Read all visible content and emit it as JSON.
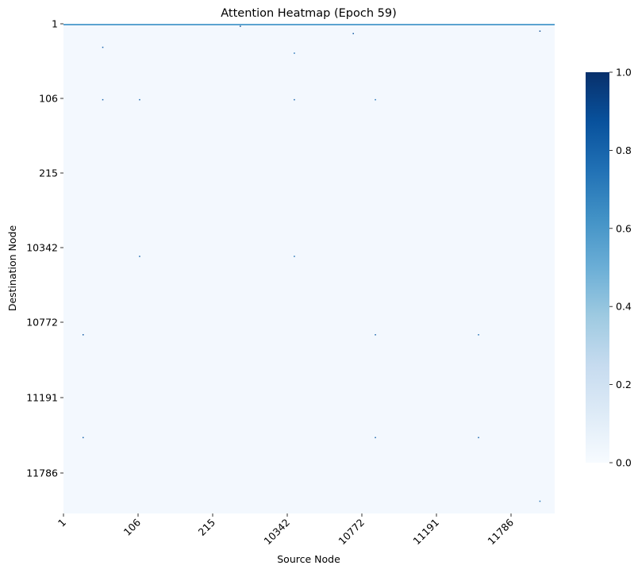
{
  "chart_data": {
    "type": "heatmap",
    "title": "Attention Heatmap (Epoch 59)",
    "xlabel": "Source Node",
    "ylabel": "Destination Node",
    "x_ticks": [
      "1",
      "106",
      "215",
      "10342",
      "10772",
      "11191",
      "11786"
    ],
    "y_ticks": [
      "1",
      "106",
      "215",
      "10342",
      "10772",
      "11191",
      "11786"
    ],
    "colorbar": {
      "range": [
        0.0,
        1.0
      ],
      "ticks": [
        "0.0",
        "0.2",
        "0.4",
        "0.6",
        "0.8",
        "1.0"
      ],
      "colormap": "Blues"
    },
    "background_value": 0.02,
    "first_row_value": 0.55,
    "hot_cells": [
      {
        "src": 0.36,
        "dst": 0.005,
        "value": 0.9
      },
      {
        "src": 0.59,
        "dst": 0.02,
        "value": 0.85
      },
      {
        "src": 0.97,
        "dst": 0.015,
        "value": 0.9
      },
      {
        "src": 0.08,
        "dst": 0.048,
        "value": 0.8
      },
      {
        "src": 0.47,
        "dst": 0.06,
        "value": 0.75
      },
      {
        "src": 0.08,
        "dst": 0.155,
        "value": 0.8
      },
      {
        "src": 0.155,
        "dst": 0.155,
        "value": 0.8
      },
      {
        "src": 0.47,
        "dst": 0.155,
        "value": 0.8
      },
      {
        "src": 0.635,
        "dst": 0.155,
        "value": 0.75
      },
      {
        "src": 0.155,
        "dst": 0.475,
        "value": 0.8
      },
      {
        "src": 0.47,
        "dst": 0.475,
        "value": 0.75
      },
      {
        "src": 0.04,
        "dst": 0.635,
        "value": 0.85
      },
      {
        "src": 0.635,
        "dst": 0.635,
        "value": 0.8
      },
      {
        "src": 0.845,
        "dst": 0.635,
        "value": 0.75
      },
      {
        "src": 0.04,
        "dst": 0.845,
        "value": 0.8
      },
      {
        "src": 0.635,
        "dst": 0.845,
        "value": 0.8
      },
      {
        "src": 0.845,
        "dst": 0.845,
        "value": 0.8
      },
      {
        "src": 0.97,
        "dst": 0.975,
        "value": 0.75
      }
    ]
  }
}
